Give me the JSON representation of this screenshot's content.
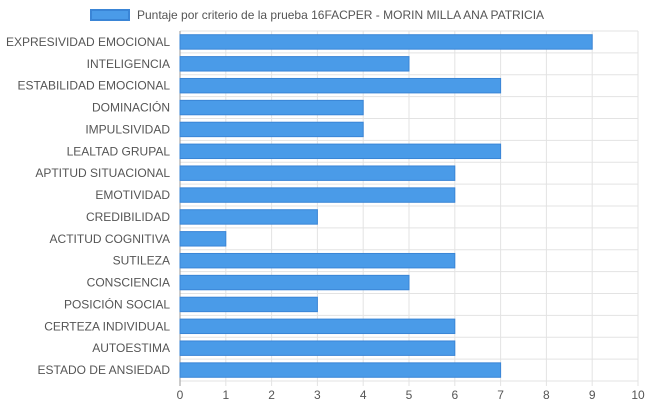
{
  "chart_data": {
    "type": "bar",
    "orientation": "horizontal",
    "title": "",
    "categories": [
      "EXPRESIVIDAD EMOCIONAL",
      "INTELIGENCIA",
      "ESTABILIDAD EMOCIONAL",
      "DOMINACIÓN",
      "IMPULSIVIDAD",
      "LEALTAD GRUPAL",
      "APTITUD SITUACIONAL",
      "EMOTIVIDAD",
      "CREDIBILIDAD",
      "ACTITUD COGNITIVA",
      "SUTILEZA",
      "CONSCIENCIA",
      "POSICIÓN SOCIAL",
      "CERTEZA INDIVIDUAL",
      "AUTOESTIMA",
      "ESTADO DE ANSIEDAD"
    ],
    "series": [
      {
        "name": "Puntaje por criterio de la prueba 16FACPER - MORIN MILLA ANA PATRICIA",
        "color": "#4a9be8",
        "values": [
          9,
          5,
          7,
          4,
          4,
          7,
          6,
          6,
          3,
          1,
          6,
          5,
          3,
          6,
          6,
          7
        ]
      }
    ],
    "x_ticks": [
      "0",
      "1",
      "2",
      "3",
      "4",
      "5",
      "6",
      "7",
      "8",
      "9",
      "10"
    ],
    "xlim": [
      0,
      10
    ],
    "grid": true,
    "legend_position": "top",
    "bar_color": "#4a9be8",
    "bar_border_color": "#3a85d6",
    "grid_color": "#e3e3e3",
    "label_color": "#555555"
  }
}
